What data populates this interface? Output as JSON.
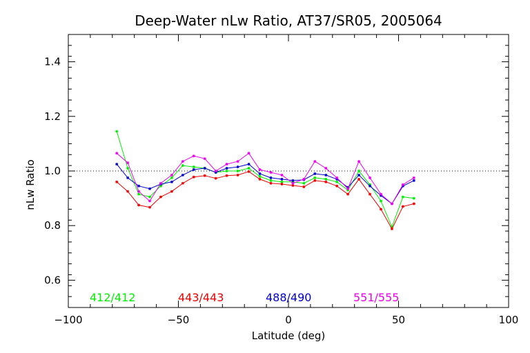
{
  "chart_data": {
    "type": "line",
    "title": "Deep-Water nLw Ratio, AT37/SR05, 2005064",
    "xlabel": "Latitude (deg)",
    "ylabel": "nLw Ratio",
    "xlim": [
      -100,
      100
    ],
    "ylim": [
      0.5,
      1.5
    ],
    "x_ticks": [
      -100,
      -50,
      0,
      50,
      100
    ],
    "x_tick_labels": [
      "−100",
      "−50",
      "0",
      "50",
      "100"
    ],
    "y_ticks": [
      0.6,
      0.8,
      1.0,
      1.2,
      1.4
    ],
    "y_tick_labels": [
      "0.6",
      "0.8",
      "1.0",
      "1.2",
      "1.4"
    ],
    "reference_line": 1.0,
    "legend_placement": "bottom",
    "x": [
      -78,
      -73,
      -68,
      -63,
      -58,
      -53,
      -48,
      -43,
      -38,
      -33,
      -28,
      -23,
      -18,
      -13,
      -8,
      -3,
      2,
      7,
      12,
      17,
      22,
      27,
      32,
      37,
      42,
      47,
      52,
      57
    ],
    "series": [
      {
        "name": "412/412",
        "color": "#00ee00",
        "values": [
          1.145,
          1.01,
          0.915,
          0.905,
          0.945,
          0.975,
          1.02,
          1.015,
          1.01,
          0.995,
          1.0,
          1.0,
          1.01,
          0.98,
          0.965,
          0.96,
          0.96,
          0.955,
          0.975,
          0.97,
          0.96,
          0.93,
          1.0,
          0.95,
          0.89,
          0.795,
          0.905,
          0.9
        ]
      },
      {
        "name": "443/443",
        "color": "#ee0000",
        "values": [
          0.96,
          0.925,
          0.875,
          0.867,
          0.905,
          0.925,
          0.955,
          0.978,
          0.983,
          0.973,
          0.983,
          0.985,
          0.998,
          0.97,
          0.955,
          0.952,
          0.947,
          0.942,
          0.965,
          0.96,
          0.945,
          0.915,
          0.97,
          0.915,
          0.86,
          0.788,
          0.87,
          0.88
        ]
      },
      {
        "name": "488/490",
        "color": "#0000cc",
        "values": [
          1.025,
          0.975,
          0.945,
          0.935,
          0.952,
          0.96,
          0.985,
          1.005,
          1.01,
          0.995,
          1.01,
          1.015,
          1.025,
          0.99,
          0.975,
          0.97,
          0.965,
          0.968,
          0.99,
          0.985,
          0.97,
          0.94,
          0.985,
          0.945,
          0.91,
          0.88,
          0.945,
          0.965
        ]
      },
      {
        "name": "551/555",
        "color": "#ee00ee",
        "values": [
          1.065,
          1.03,
          0.925,
          0.89,
          0.955,
          0.985,
          1.035,
          1.055,
          1.045,
          1.0,
          1.025,
          1.035,
          1.065,
          1.005,
          0.995,
          0.985,
          0.955,
          0.97,
          1.035,
          1.01,
          0.975,
          0.935,
          1.035,
          0.975,
          0.915,
          0.88,
          0.95,
          0.975
        ]
      }
    ]
  }
}
